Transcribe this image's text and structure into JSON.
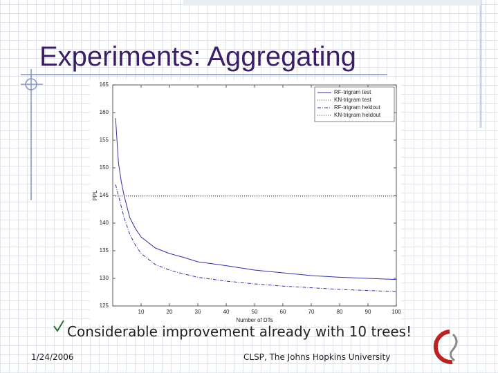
{
  "slide": {
    "title": "Experiments: Aggregating",
    "bullet": "Considerable improvement already with 10 trees!",
    "date": "1/24/2006",
    "footer": "CLSP, The Johns Hopkins University"
  },
  "chart_data": {
    "type": "line",
    "x_label": "Number of DTs",
    "y_label": "PPL",
    "x": [
      1,
      2,
      3,
      4,
      5,
      6,
      7,
      8,
      10,
      15,
      20,
      25,
      30,
      40,
      50,
      60,
      70,
      80,
      90,
      100
    ],
    "series": [
      {
        "name": "RF-trigram test",
        "color": "#2b2fa6",
        "linestyle": "solid",
        "values": [
          159,
          151,
          147.5,
          145,
          143,
          141,
          140,
          139,
          137.5,
          135.5,
          134.5,
          133.8,
          133,
          132.3,
          131.5,
          131,
          130.5,
          130.2,
          130,
          129.8
        ]
      },
      {
        "name": "KN-trigram test",
        "color": "#333333",
        "linestyle": "dotted",
        "values": [
          144.9,
          144.9,
          144.9,
          144.9,
          144.9,
          144.9,
          144.9,
          144.9,
          144.9,
          144.9,
          144.9,
          144.9,
          144.9,
          144.9,
          144.9,
          144.9,
          144.9,
          144.9,
          144.9,
          144.9
        ]
      },
      {
        "name": "RF-trigram heldout",
        "color": "#2b2fa6",
        "linestyle": "dashdot",
        "values": [
          147,
          145,
          143,
          141,
          139.5,
          138,
          137,
          136,
          134.5,
          132.5,
          131.5,
          130.8,
          130.2,
          129.5,
          129,
          128.6,
          128.3,
          128,
          127.8,
          127.6
        ]
      },
      {
        "name": "KN-trigram heldout",
        "color": "#333333",
        "linestyle": "dotted",
        "values": [
          144.9,
          144.9,
          144.9,
          144.9,
          144.9,
          144.9,
          144.9,
          144.9,
          144.9,
          144.9,
          144.9,
          144.9,
          144.9,
          144.9,
          144.9,
          144.9,
          144.9,
          144.9,
          144.9,
          144.9
        ]
      }
    ],
    "xlim": [
      0,
      100
    ],
    "xticks": [
      10,
      20,
      30,
      40,
      50,
      60,
      70,
      80,
      90,
      100
    ],
    "ylim": [
      125,
      165
    ],
    "yticks": [
      125,
      130,
      135,
      140,
      145,
      150,
      155,
      160,
      165
    ],
    "legend": "upper right"
  }
}
